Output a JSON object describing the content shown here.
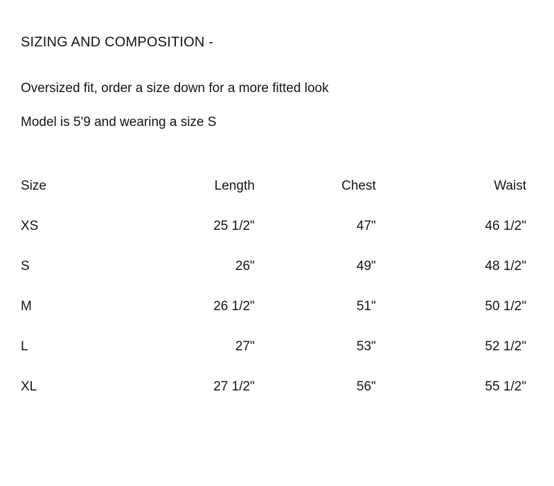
{
  "heading": "SIZING AND COMPOSITION -",
  "desc1": "Oversized fit, order a size down for a more fitted look",
  "desc2": "Model is 5'9 and wearing a size S",
  "table": {
    "columns": [
      "Size",
      "Length",
      "Chest",
      "Waist"
    ],
    "rows": [
      [
        "XS",
        "25 1/2\"",
        "47\"",
        "46 1/2\""
      ],
      [
        "S",
        "26\"",
        "49\"",
        "48 1/2\""
      ],
      [
        "M",
        "26 1/2\"",
        "51\"",
        "50 1/2\""
      ],
      [
        "L",
        "27\"",
        "53\"",
        "52 1/2\""
      ],
      [
        "XL",
        "27 1/2\"",
        "56\"",
        "55 1/2\""
      ]
    ],
    "text_color": "#141414",
    "background_color": "#ffffff",
    "font_size": 19,
    "col_align": [
      "left",
      "right",
      "right",
      "right"
    ]
  }
}
